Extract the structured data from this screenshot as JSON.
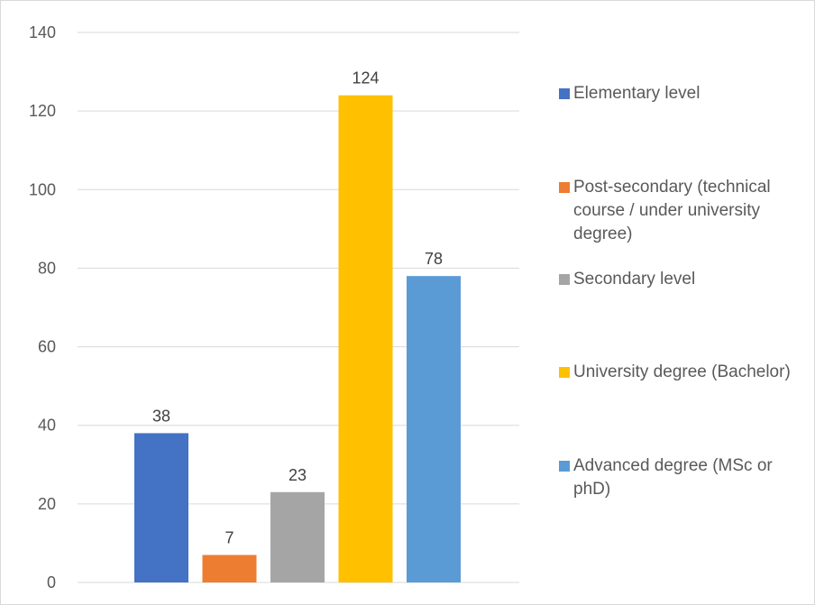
{
  "chart_data": {
    "type": "bar",
    "title": "",
    "xlabel": "",
    "ylabel": "",
    "ylim": [
      0,
      140
    ],
    "yticks": [
      0,
      20,
      40,
      60,
      80,
      100,
      120,
      140
    ],
    "grid": true,
    "legend_position": "right",
    "series": [
      {
        "name": "Elementary level",
        "value": 38,
        "color": "#4472C4"
      },
      {
        "name": "Post-secondary (technical course / under university degree)",
        "value": 7,
        "color": "#ED7D31"
      },
      {
        "name": "Secondary level",
        "value": 23,
        "color": "#A5A5A5"
      },
      {
        "name": "University degree (Bachelor)",
        "value": 124,
        "color": "#FFC000"
      },
      {
        "name": "Advanced degree (MSc or phD)",
        "value": 78,
        "color": "#5B9BD5"
      }
    ]
  }
}
